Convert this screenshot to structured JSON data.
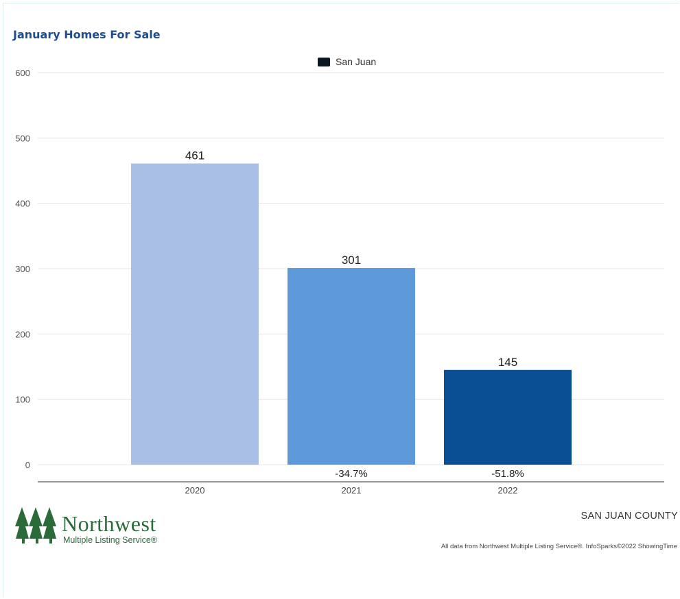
{
  "chart_data": {
    "type": "bar",
    "title": "January Homes For Sale",
    "categories": [
      "2020",
      "2021",
      "2022"
    ],
    "series": [
      {
        "name": "San Juan",
        "values": [
          461,
          301,
          145
        ],
        "colors": [
          "#a9bfe6",
          "#5e99da",
          "#0a4f93"
        ],
        "change_labels": [
          "",
          "-34.7%",
          "-51.8%"
        ]
      }
    ],
    "ylim": [
      0,
      600
    ],
    "yticks": [
      0,
      100,
      200,
      300,
      400,
      500,
      600
    ],
    "grid": true,
    "legend": "top-center",
    "legend_color": "#0a1620"
  },
  "footer": {
    "logo_name": "Northwest",
    "logo_sub": "Multiple Listing Service®",
    "logo_color": "#2b6b3a",
    "county": "SAN JUAN COUNTY",
    "source": "All data from Northwest Multiple Listing Service®. InfoSparks©2022 ShowingTime"
  }
}
